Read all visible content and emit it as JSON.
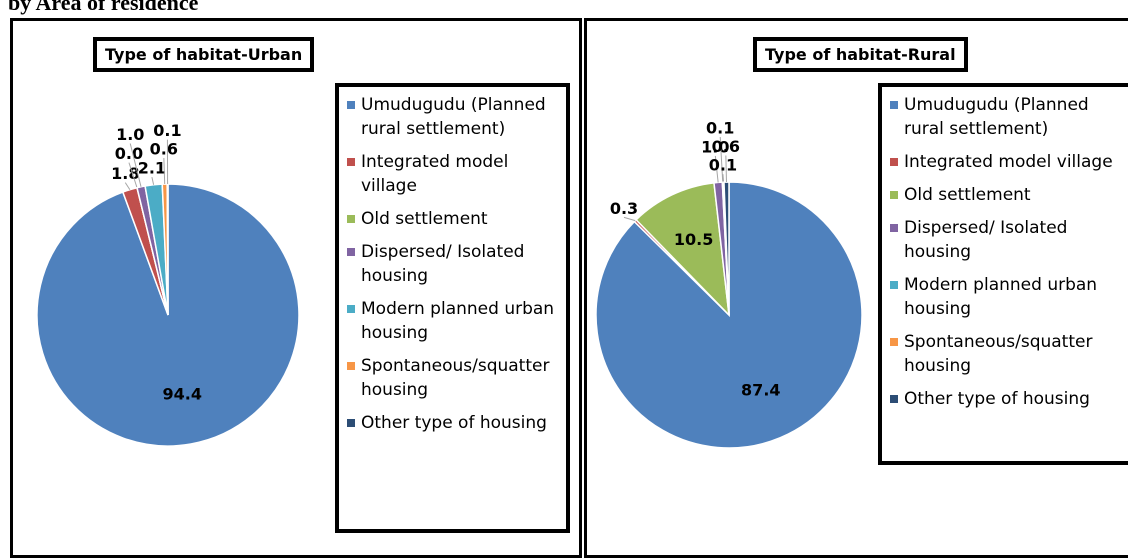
{
  "heading": "by Area of residence",
  "chart_data": [
    {
      "type": "pie",
      "title": "Type of habitat-Urban",
      "categories": [
        "Umudugudu (Planned rural settlement)",
        "Integrated model village",
        "Old settlement",
        "Dispersed/ Isolated housing",
        "Modern planned urban housing",
        "Spontaneous/squatter housing",
        "Other type of housing"
      ],
      "values": [
        94.4,
        1.8,
        0.0,
        1.0,
        2.1,
        0.6,
        0.1
      ],
      "value_labels": [
        "94.4",
        "1.8",
        "0.0",
        "1.0",
        "2.1",
        "0.6",
        "0.1"
      ],
      "colors": [
        "#4f81bd",
        "#c0504d",
        "#9bbb59",
        "#8064a2",
        "#4bacc6",
        "#f79646",
        "#2c4d75"
      ]
    },
    {
      "type": "pie",
      "title": "Type of habitat-Rural",
      "categories": [
        "Umudugudu (Planned rural settlement)",
        "Integrated model village",
        "Old settlement",
        "Dispersed/ Isolated housing",
        "Modern planned urban housing",
        "Spontaneous/squatter housing",
        "Other type of housing"
      ],
      "values": [
        87.4,
        0.3,
        10.5,
        1.0,
        0.1,
        0.1,
        0.6
      ],
      "value_labels": [
        "87.4",
        "0.3",
        "10.5",
        "1.0",
        "0.1",
        "0.1",
        "0.6"
      ],
      "colors": [
        "#4f81bd",
        "#c0504d",
        "#9bbb59",
        "#8064a2",
        "#4bacc6",
        "#f79646",
        "#2c4d75"
      ]
    }
  ]
}
